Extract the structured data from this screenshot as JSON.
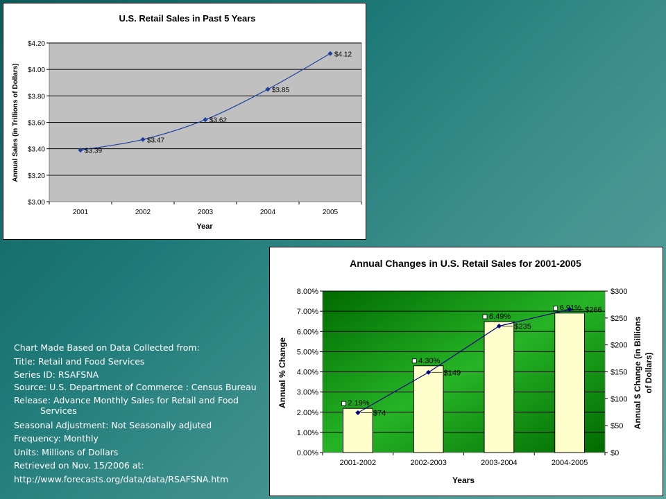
{
  "chart_data": [
    {
      "type": "line",
      "title": "U.S. Retail Sales in Past 5 Years",
      "xlabel": "Year",
      "ylabel": "Annual Sales (in Trillions of Dollars)",
      "categories": [
        "2001",
        "2002",
        "2003",
        "2004",
        "2005"
      ],
      "values": [
        3.39,
        3.47,
        3.62,
        3.85,
        4.12
      ],
      "data_labels": [
        "$3.39",
        "$3.47",
        "$3.62",
        "$3.85",
        "$4.12"
      ],
      "ylim": [
        3.0,
        4.2
      ],
      "yticks": [
        "$3.00",
        "$3.20",
        "$3.40",
        "$3.60",
        "$3.80",
        "$4.00",
        "$4.20"
      ],
      "ytick_values": [
        3.0,
        3.2,
        3.4,
        3.6,
        3.8,
        4.0,
        4.2
      ],
      "grid": true,
      "line_color": "#1f3f9f",
      "plot_bg": "#c0c0c0"
    },
    {
      "type": "bar",
      "title": "Annual Changes in U.S. Retail Sales for 2001-2005",
      "xlabel": "Years",
      "ylabel": "Annual % Change",
      "y2label_line1": "Annual $ Change (in Billions",
      "y2label_line2": "of Dollars)",
      "categories": [
        "2001-2002",
        "2002-2003",
        "2003-2004",
        "2004-2005"
      ],
      "series": [
        {
          "type": "bar",
          "axis": "left",
          "values": [
            2.19,
            4.3,
            6.49,
            6.91
          ],
          "data_labels": [
            "2.19%",
            "4.30%",
            "6.49%",
            "6.91%"
          ],
          "color": "#ffffcc"
        },
        {
          "type": "line",
          "axis": "right",
          "values": [
            74,
            149,
            235,
            266
          ],
          "data_labels": [
            "$74",
            "$149",
            "$235",
            "$266"
          ],
          "color": "#000080"
        }
      ],
      "ylim": [
        0,
        8
      ],
      "yticks": [
        "0.00%",
        "1.00%",
        "2.00%",
        "3.00%",
        "4.00%",
        "5.00%",
        "6.00%",
        "7.00%",
        "8.00%"
      ],
      "ytick_values": [
        0,
        1,
        2,
        3,
        4,
        5,
        6,
        7,
        8
      ],
      "y2lim": [
        0,
        300
      ],
      "y2ticks": [
        "$0",
        "$50",
        "$100",
        "$150",
        "$200",
        "$250",
        "$300"
      ],
      "y2tick_values": [
        0,
        50,
        100,
        150,
        200,
        250,
        300
      ],
      "grid": true,
      "plot_bg": "#1f9a1f"
    }
  ],
  "notes": {
    "line1": "Chart Made Based on Data Collected  from:",
    "line2": "Title: Retail and Food Services",
    "line3": "Series ID: RSAFSNA",
    "line4": "Source: U.S. Department of Commerce : Census Bureau",
    "line5": "Release: Advance Monthly Sales for Retail and Food Services",
    "line6": "Seasonal Adjustment: Not Seasonally adjuted",
    "line7": "Frequency: Monthly",
    "line8": "Units: Millions  of Dollars",
    "line9": "Retrieved  on Nov. 15/2006  at:",
    "line10": "http://www.forecasts.org/data/data/RSAFSNA.htm"
  }
}
